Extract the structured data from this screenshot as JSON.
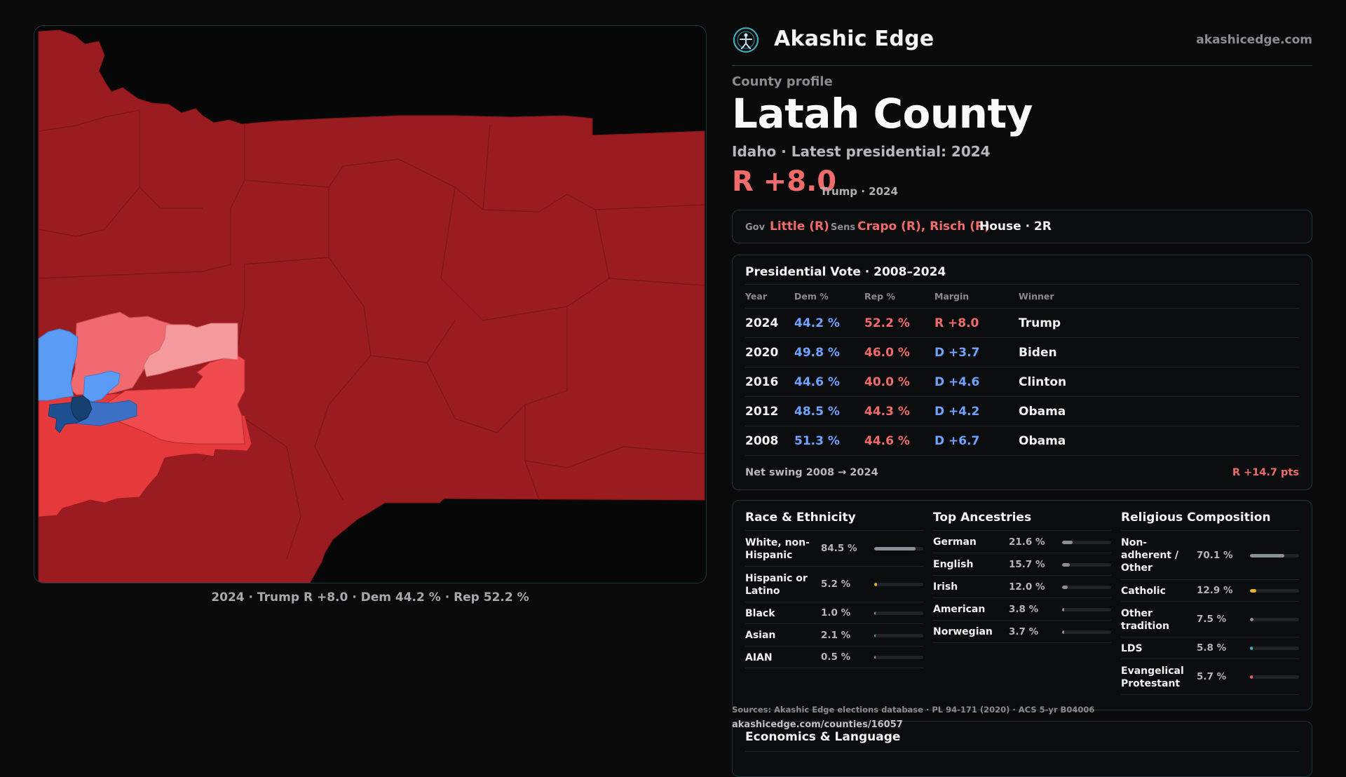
{
  "map": {
    "caption": "2024 · Trump R +8.0 · Dem 44.2 % · Rep 52.2 %",
    "legend_colors": {
      "strong_rep": "#9b1c20",
      "lean_rep": "#ef4b4e",
      "mid_rep": "#e5393c",
      "light_rep": "#f06a6f",
      "tilt_rep": "#f59a9c",
      "lean_dem": "#5a9cf5",
      "strong_dem": "#1d4f91",
      "mid_dem": "#3b70c4"
    }
  },
  "brand": {
    "name": "Akashic Edge",
    "url": "akashicedge.com"
  },
  "profile": {
    "kicker": "County profile",
    "title": "Latah County",
    "subtitle": "Idaho · Latest presidential: 2024",
    "margin": "R +8.0",
    "margin_note": "Trump · 2024"
  },
  "officials": {
    "gov_label": "Gov",
    "gov": "Little (R)",
    "sens_label": "Sens",
    "sens": "Crapo (R), Risch (R)",
    "house": "House · 2R"
  },
  "presidential": {
    "title": "Presidential Vote · 2008–2024",
    "headers": [
      "Year",
      "Dem %",
      "Rep %",
      "Margin",
      "Winner"
    ],
    "rows": [
      {
        "year": "2024",
        "dem": "44.2 %",
        "rep": "52.2 %",
        "margin": "R +8.0",
        "margin_party": "rep",
        "winner": "Trump"
      },
      {
        "year": "2020",
        "dem": "49.8 %",
        "rep": "46.0 %",
        "margin": "D +3.7",
        "margin_party": "dem",
        "winner": "Biden"
      },
      {
        "year": "2016",
        "dem": "44.6 %",
        "rep": "40.0 %",
        "margin": "D +4.6",
        "margin_party": "dem",
        "winner": "Clinton"
      },
      {
        "year": "2012",
        "dem": "48.5 %",
        "rep": "44.3 %",
        "margin": "D +4.2",
        "margin_party": "dem",
        "winner": "Obama"
      },
      {
        "year": "2008",
        "dem": "51.3 %",
        "rep": "44.6 %",
        "margin": "D +6.7",
        "margin_party": "dem",
        "winner": "Obama"
      }
    ],
    "swing_label": "Net swing 2008 → 2024",
    "swing_value": "R +14.7 pts"
  },
  "race": {
    "title": "Race & Ethnicity",
    "items": [
      {
        "label": "White, non-\nHispanic",
        "pct": "84.5 %",
        "value": 0.845,
        "color": "#8a8f96"
      },
      {
        "label": "Hispanic or\nLatino",
        "pct": "5.2 %",
        "value": 0.052,
        "color": "#e8a630"
      },
      {
        "label": "Black",
        "pct": "1.0 %",
        "value": 0.01,
        "color": "#8a8f96"
      },
      {
        "label": "Asian",
        "pct": "2.1 %",
        "value": 0.021,
        "color": "#3aa3a3"
      },
      {
        "label": "AIAN",
        "pct": "0.5 %",
        "value": 0.005,
        "color": "#8a8f96"
      }
    ]
  },
  "ancestry": {
    "title": "Top Ancestries",
    "items": [
      {
        "label": "German",
        "pct": "21.6 %",
        "value": 0.216,
        "color": "#8a8f96"
      },
      {
        "label": "English",
        "pct": "15.7 %",
        "value": 0.157,
        "color": "#8a8f96"
      },
      {
        "label": "Irish",
        "pct": "12.0 %",
        "value": 0.12,
        "color": "#8a8f96"
      },
      {
        "label": "American",
        "pct": "3.8 %",
        "value": 0.038,
        "color": "#8a8f96"
      },
      {
        "label": "Norwegian",
        "pct": "3.7 %",
        "value": 0.037,
        "color": "#8a8f96"
      }
    ]
  },
  "religion": {
    "title": "Religious Composition",
    "items": [
      {
        "label": "Non-\nadherent /\nOther",
        "pct": "70.1 %",
        "value": 0.701,
        "color": "#8a8f96"
      },
      {
        "label": "Catholic",
        "pct": "12.9 %",
        "value": 0.129,
        "color": "#e8b030"
      },
      {
        "label": "Other\ntradition",
        "pct": "7.5 %",
        "value": 0.075,
        "color": "#8a8f96"
      },
      {
        "label": "LDS",
        "pct": "5.8 %",
        "value": 0.058,
        "color": "#3ab0c0"
      },
      {
        "label": "Evangelical\nProtestant",
        "pct": "5.7 %",
        "value": 0.057,
        "color": "#e06060"
      }
    ]
  },
  "sources": {
    "text": "Sources: Akashic Edge elections database · PL 94-171 (2020) · ACS 5-yr B04006",
    "url": "akashicedge.com/counties/16057"
  },
  "economics": {
    "title": "Economics & Language"
  }
}
